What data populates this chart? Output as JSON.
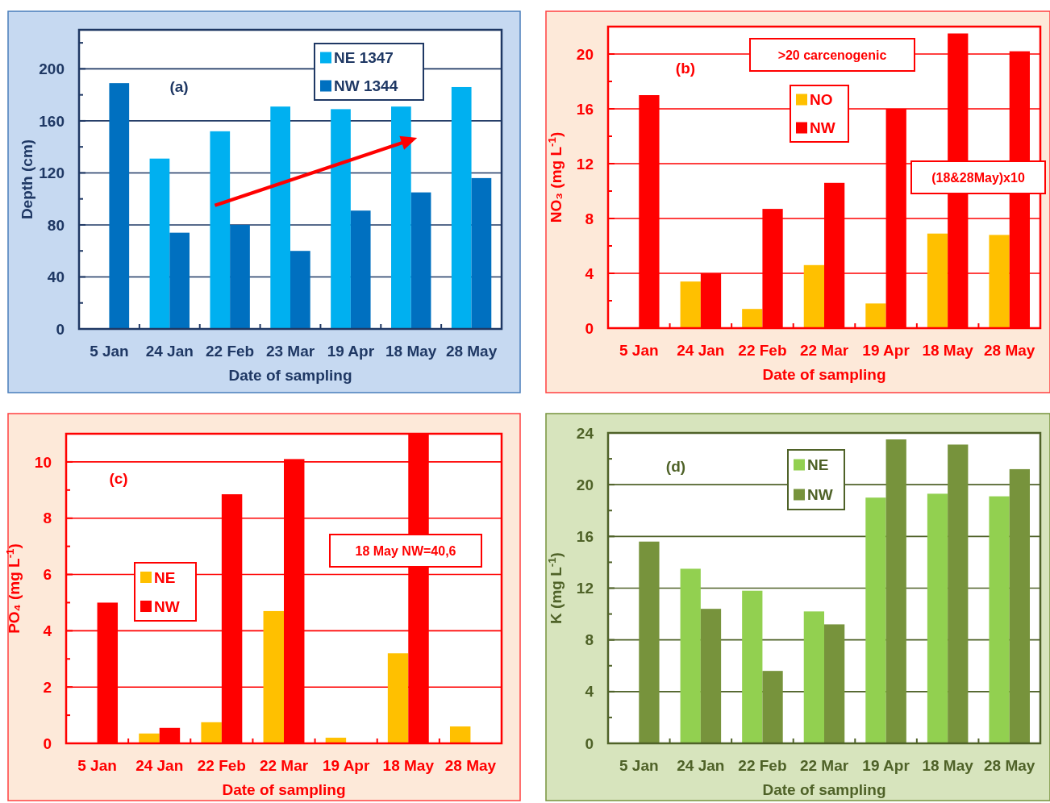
{
  "chart_data": [
    {
      "type": "bar",
      "categories": [
        "5 Jan",
        "24 Jan",
        "22 Feb",
        "23 Mar",
        "19 Apr",
        "18 May",
        "28 May"
      ],
      "xlabel": "Date of sampling",
      "ylabel": "Depth (cm)",
      "series": [
        {
          "name": "NE 1347",
          "color": "#00b0f0",
          "values": [
            null,
            131,
            152,
            171,
            169,
            171,
            186
          ]
        },
        {
          "name": "NW 1344",
          "color": "#0070c0",
          "values": [
            189,
            74,
            80,
            60,
            91,
            105,
            116
          ]
        }
      ],
      "ylim": [
        0,
        230
      ],
      "yticks": [
        0,
        {
          "value": 20,
          "label": null
        },
        40,
        {
          "value": 60,
          "label": null
        },
        80,
        {
          "value": 100,
          "label": null
        },
        120,
        {
          "value": 140,
          "label": null
        },
        160,
        {
          "value": 180,
          "label": null
        },
        200,
        {
          "value": 220,
          "label": null
        }
      ],
      "grid": "y",
      "legend": "top right",
      "annotations": [
        "(a)"
      ]
    },
    {
      "type": "bar",
      "categories": [
        "5 Jan",
        "24 Jan",
        "22 Feb",
        "22 Mar",
        "19 Apr",
        "18 May",
        "28 May"
      ],
      "xlabel": "Date of sampling",
      "ylabel": "NO₃ (mg L$^{-1}$)",
      "series": [
        {
          "name": "NO",
          "color": "#ffc000",
          "values": [
            null,
            3.4,
            1.4,
            4.6,
            1.8,
            6.9,
            6.8
          ]
        },
        {
          "name": "NW",
          "color": "#ff0000",
          "values": [
            17.0,
            4.0,
            8.7,
            10.6,
            16.0,
            21.5,
            20.2
          ]
        }
      ],
      "ylim": [
        0,
        22
      ],
      "yticks": [
        0,
        {
          "value": 2,
          "label": null
        },
        4,
        {
          "value": 6,
          "label": null
        },
        8,
        {
          "value": 10,
          "label": null
        },
        12,
        {
          "value": 14,
          "label": null
        },
        16,
        {
          "value": 18,
          "label": null
        },
        20
      ],
      "grid": "y",
      "legend": "top",
      "annotations": [
        "(b)",
        ">20 carcenogenic",
        "(18&28May)x10"
      ]
    },
    {
      "type": "bar",
      "categories": [
        "5 Jan",
        "24 Jan",
        "22 Feb",
        "22 Mar",
        "19 Apr",
        "18 May",
        "28 May"
      ],
      "xlabel": "Date of sampling",
      "ylabel": "PO₄ (mg L$^{-1}$)",
      "series": [
        {
          "name": "NE",
          "color": "#ffc000",
          "values": [
            null,
            0.35,
            0.75,
            4.7,
            0.2,
            3.2,
            0.6
          ]
        },
        {
          "name": "NW",
          "color": "#ff0000",
          "values": [
            5.0,
            0.55,
            8.85,
            10.1,
            null,
            11,
            null
          ]
        }
      ],
      "ylim": [
        0,
        11
      ],
      "yticks": [
        0,
        {
          "value": 1,
          "label": null
        },
        2,
        {
          "value": 3,
          "label": null
        },
        4,
        {
          "value": 5,
          "label": null
        },
        6,
        {
          "value": 7,
          "label": null
        },
        8,
        {
          "value": 9,
          "label": null
        },
        10
      ],
      "grid": "y",
      "legend": "left",
      "annotations": [
        "(c)",
        "18 May  NW=40,6"
      ]
    },
    {
      "type": "bar",
      "categories": [
        "5 Jan",
        "24 Jan",
        "22 Feb",
        "22 Mar",
        "19 Apr",
        "18 May",
        "28 May"
      ],
      "xlabel": "Date of sampling",
      "ylabel": "K (mg L$^{-1}$)",
      "series": [
        {
          "name": "NE",
          "color": "#92d050",
          "values": [
            null,
            13.5,
            11.8,
            10.2,
            19.0,
            19.3,
            19.1
          ]
        },
        {
          "name": "NW",
          "color": "#77933c",
          "values": [
            15.6,
            10.4,
            5.6,
            9.2,
            23.5,
            23.1,
            21.2
          ]
        }
      ],
      "ylim": [
        0,
        24
      ],
      "yticks": [
        0,
        {
          "value": 2,
          "label": null
        },
        4,
        {
          "value": 6,
          "label": null
        },
        8,
        {
          "value": 10,
          "label": null
        },
        12,
        {
          "value": 14,
          "label": null
        },
        16,
        {
          "value": 18,
          "label": null
        },
        20,
        {
          "value": 22,
          "label": null
        },
        24
      ],
      "grid": "y",
      "legend": "top",
      "annotations": [
        "(d)"
      ]
    }
  ]
}
